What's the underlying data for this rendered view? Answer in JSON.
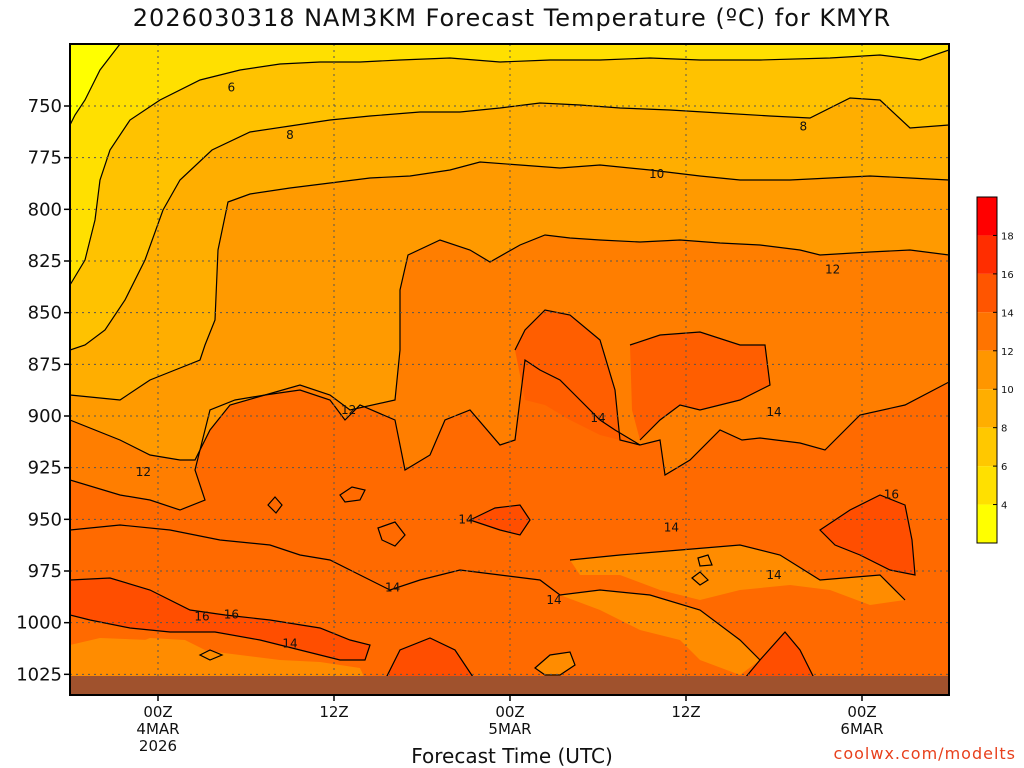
{
  "title": "2026030318 NAM3KM Forecast Temperature (ºC) for KMYR",
  "credit": "coolwx.com/modelts",
  "chart_data": {
    "type": "contour",
    "title": "2026030318 NAM3KM Forecast Temperature (ºC) for KMYR",
    "xlabel": "Forecast Time (UTC)",
    "ylabel": "",
    "y_axis": "pressure (hPa), inverted",
    "ylim": [
      1035,
      720
    ],
    "yticks": [
      750,
      775,
      800,
      825,
      850,
      875,
      900,
      925,
      950,
      975,
      1000,
      1025
    ],
    "x_ticks": [
      {
        "label": "00Z",
        "sublabels": [
          "4MAR",
          "2026"
        ]
      },
      {
        "label": "12Z",
        "sublabels": []
      },
      {
        "label": "00Z",
        "sublabels": [
          "5MAR"
        ]
      },
      {
        "label": "12Z",
        "sublabels": []
      },
      {
        "label": "00Z",
        "sublabels": [
          "6MAR"
        ]
      }
    ],
    "grid": true,
    "contour_levels": [
      6,
      8,
      10,
      12,
      14,
      16
    ],
    "colorbar": {
      "ticks": [
        4,
        6,
        8,
        10,
        12,
        14,
        16,
        18
      ],
      "colors": [
        "#ffff00",
        "#ffe000",
        "#ffc800",
        "#ffae00",
        "#ff9600",
        "#ff7400",
        "#ff5500",
        "#ff2d00",
        "#ff0000"
      ]
    },
    "contour_labels": [
      {
        "value": 6,
        "x_hours": 5,
        "p": 741
      },
      {
        "value": 8,
        "x_hours": 9,
        "p": 764
      },
      {
        "value": 8,
        "x_hours": 44,
        "p": 760
      },
      {
        "value": 10,
        "x_hours": 34,
        "p": 783
      },
      {
        "value": 12,
        "x_hours": 13,
        "p": 897
      },
      {
        "value": 12,
        "x_hours": -1,
        "p": 927
      },
      {
        "value": 12,
        "x_hours": 46,
        "p": 829
      },
      {
        "value": 14,
        "x_hours": 9,
        "p": 1010
      },
      {
        "value": 14,
        "x_hours": 16,
        "p": 983
      },
      {
        "value": 14,
        "x_hours": 21,
        "p": 950
      },
      {
        "value": 14,
        "x_hours": 30,
        "p": 901
      },
      {
        "value": 14,
        "x_hours": 42,
        "p": 898
      },
      {
        "value": 14,
        "x_hours": 35,
        "p": 954
      },
      {
        "value": 14,
        "x_hours": 42,
        "p": 977
      },
      {
        "value": 14,
        "x_hours": 27,
        "p": 989
      },
      {
        "value": 16,
        "x_hours": 3,
        "p": 997
      },
      {
        "value": 16,
        "x_hours": 5,
        "p": 996
      },
      {
        "value": 16,
        "x_hours": 50,
        "p": 938
      }
    ]
  }
}
